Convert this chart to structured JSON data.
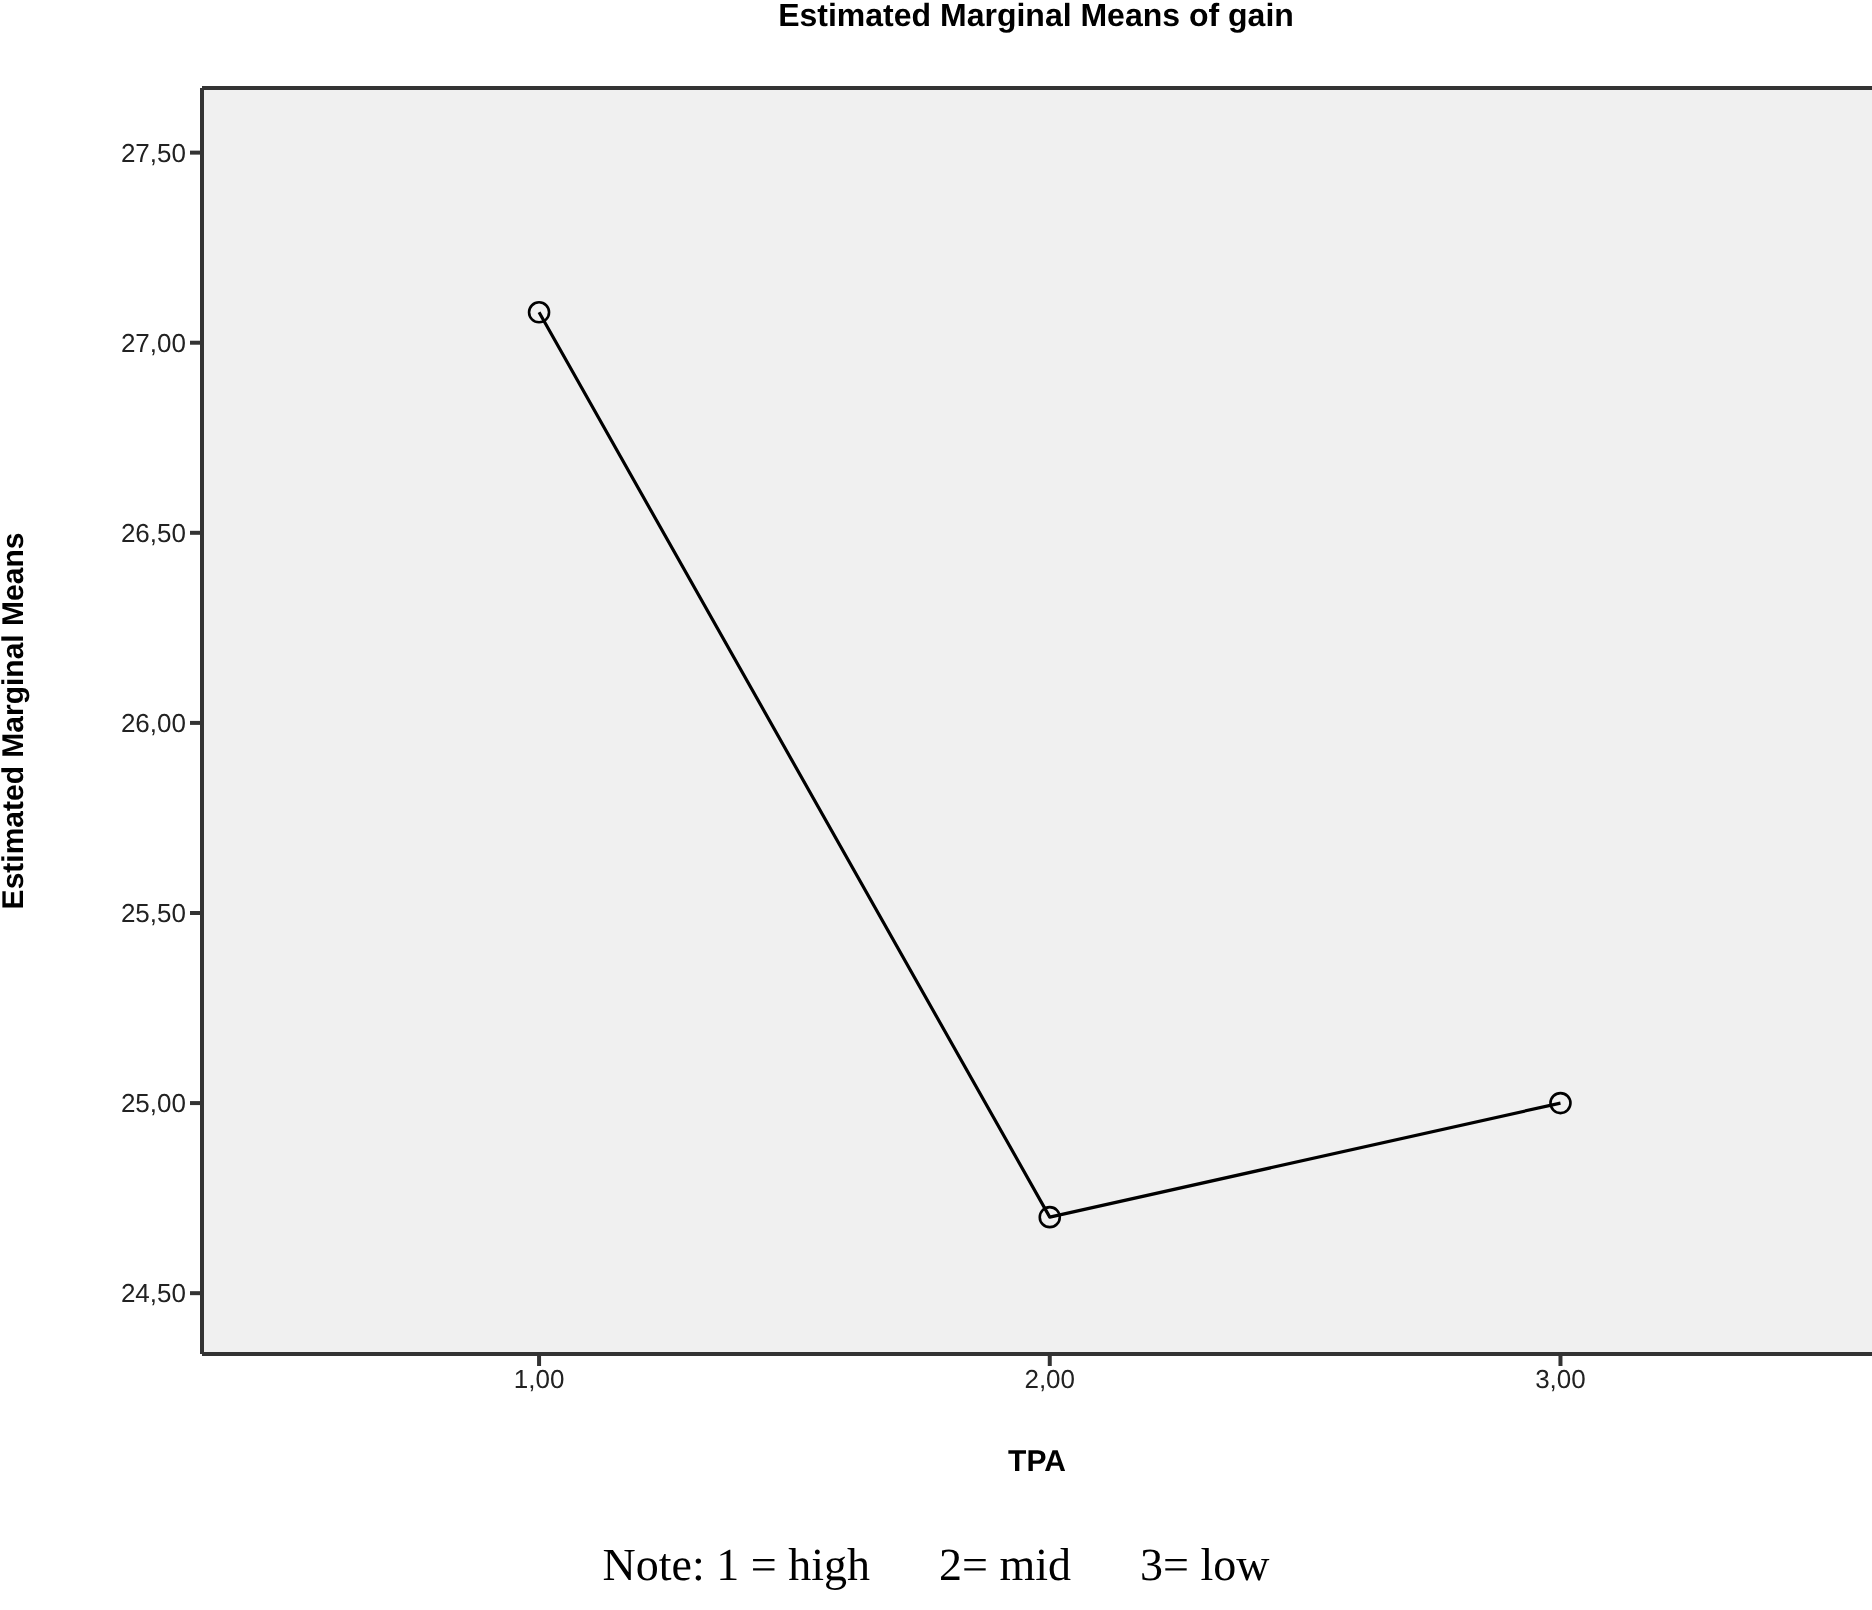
{
  "chart_data": {
    "type": "line",
    "title": "Estimated Marginal Means of gain",
    "xlabel": "TPA",
    "ylabel": "Estimated Marginal Means",
    "categories": [
      "1,00",
      "2,00",
      "3,00"
    ],
    "series": [
      {
        "color": "#000000",
        "values": [
          27.08,
          24.7,
          25.0
        ]
      }
    ],
    "ylim": [
      24.34,
      27.67
    ],
    "yticks": [
      {
        "value": 24.5,
        "label": "24,50"
      },
      {
        "value": 25,
        "label": "25,00"
      },
      {
        "value": 25.5,
        "label": "25,50"
      },
      {
        "value": 26,
        "label": "26,00"
      },
      {
        "value": 26.5,
        "label": "26,50"
      },
      {
        "value": 27,
        "label": "27,00"
      },
      {
        "value": 27.5,
        "label": "27,50"
      }
    ],
    "grid": false,
    "marker": "circle",
    "line_style": "solid",
    "annotations": [
      "Note: 1 = high      2= mid      3= low"
    ]
  }
}
